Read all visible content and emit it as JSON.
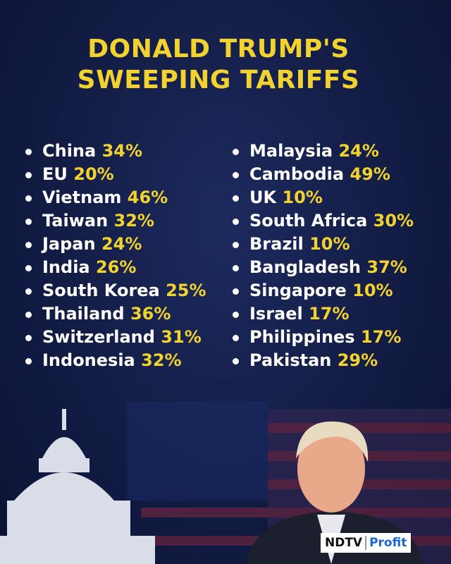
{
  "header": {
    "title_lines": [
      "DONALD TRUMP'S",
      "SWEEPING TARIFFS"
    ]
  },
  "lists": {
    "left": [
      {
        "country": "China",
        "rate": "34%"
      },
      {
        "country": "EU",
        "rate": "20%"
      },
      {
        "country": "Vietnam",
        "rate": "46%"
      },
      {
        "country": "Taiwan",
        "rate": "32%"
      },
      {
        "country": "Japan",
        "rate": "24%"
      },
      {
        "country": "India",
        "rate": "26%"
      },
      {
        "country": "South Korea",
        "rate": "25%"
      },
      {
        "country": "Thailand",
        "rate": "36%"
      },
      {
        "country": "Switzerland",
        "rate": "31%"
      },
      {
        "country": "Indonesia",
        "rate": "32%"
      }
    ],
    "right": [
      {
        "country": "Malaysia",
        "rate": "24%"
      },
      {
        "country": "Cambodia",
        "rate": "49%"
      },
      {
        "country": "UK",
        "rate": "10%"
      },
      {
        "country": "South Africa",
        "rate": "30%"
      },
      {
        "country": "Brazil",
        "rate": "10%"
      },
      {
        "country": "Bangladesh",
        "rate": "37%"
      },
      {
        "country": "Singapore",
        "rate": "10%"
      },
      {
        "country": "Israel",
        "rate": "17%"
      },
      {
        "country": "Philippines",
        "rate": "17%"
      },
      {
        "country": "Pakistan",
        "rate": "29%"
      }
    ]
  },
  "logo": {
    "brand": "NDTV",
    "product": "Profit"
  }
}
